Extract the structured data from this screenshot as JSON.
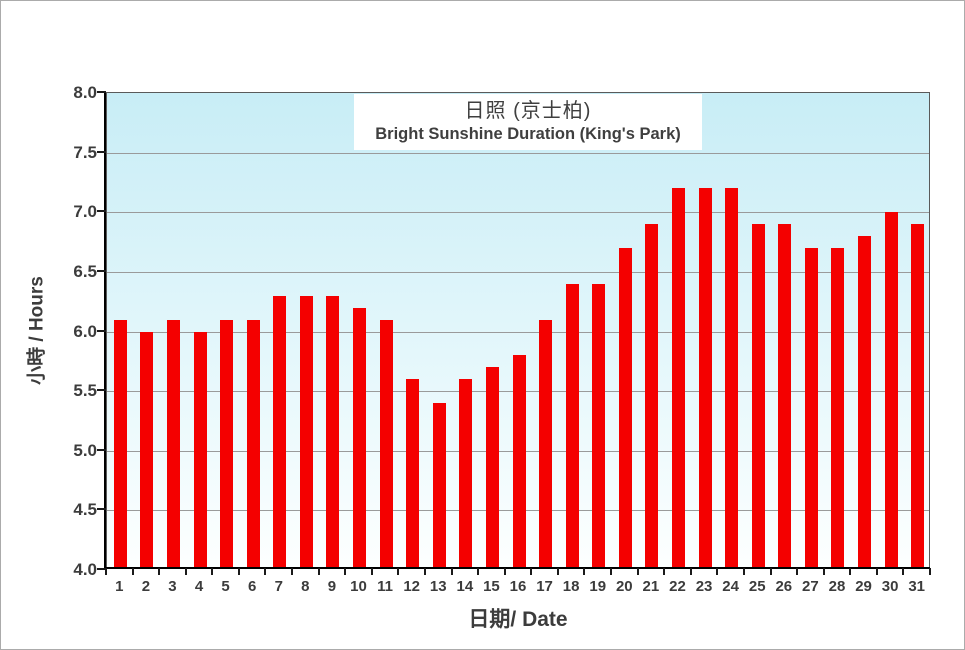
{
  "figure": {
    "title_zh": "日照 (京士柏)",
    "title_en": "Bright Sunshine Duration (King's Park)",
    "y_axis_title": "小時 / Hours",
    "x_axis_title": "日期/ Date"
  },
  "colors": {
    "bar": "#f40000",
    "plot_bg_top": "#c8edf6",
    "plot_bg_bottom": "#ffffff",
    "gridline": "#9a9a9a",
    "axis": "#000000",
    "text": "#3c3c3c",
    "frame": "#ababab"
  },
  "chart_data": {
    "type": "bar",
    "title": "日照 (京士柏) — Bright Sunshine Duration (King's Park)",
    "xlabel": "日期/ Date",
    "ylabel": "小時 / Hours",
    "categories": [
      1,
      2,
      3,
      4,
      5,
      6,
      7,
      8,
      9,
      10,
      11,
      12,
      13,
      14,
      15,
      16,
      17,
      18,
      19,
      20,
      21,
      22,
      23,
      24,
      25,
      26,
      27,
      28,
      29,
      30,
      31
    ],
    "values": [
      6.1,
      6.0,
      6.1,
      6.0,
      6.1,
      6.1,
      6.3,
      6.3,
      6.3,
      6.2,
      6.1,
      5.6,
      5.4,
      5.6,
      5.7,
      5.8,
      6.1,
      6.4,
      6.4,
      6.7,
      6.9,
      7.2,
      7.2,
      7.2,
      6.9,
      6.9,
      6.7,
      6.7,
      6.8,
      7.0,
      6.9
    ],
    "ylim": [
      4.0,
      8.0
    ],
    "ytick_step": 0.5,
    "ytick_decimals": 1,
    "grid": true,
    "legend": false
  }
}
